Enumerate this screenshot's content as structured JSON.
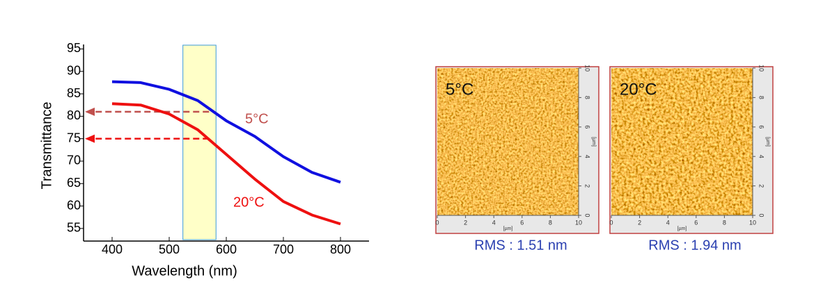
{
  "chart_data": {
    "type": "line",
    "xlabel": "Wavelength (nm)",
    "ylabel": "Transmittance",
    "x": [
      400,
      450,
      500,
      550,
      600,
      650,
      700,
      750,
      800
    ],
    "series": [
      {
        "name": "5°C",
        "color": "#1010e0",
        "values": [
          87.7,
          87.5,
          86,
          83.5,
          79,
          75.5,
          71,
          67.5,
          65.3
        ]
      },
      {
        "name": "20°C",
        "color": "#ee1010",
        "values": [
          82.8,
          82.5,
          80.5,
          77,
          71.5,
          66,
          61,
          58,
          56
        ]
      }
    ],
    "xlim": [
      350,
      850
    ],
    "xticks": [
      400,
      500,
      600,
      700,
      800
    ],
    "ylim": [
      52.5,
      96
    ],
    "yticks": [
      55,
      60,
      65,
      70,
      75,
      80,
      85,
      90,
      95
    ],
    "highlight": {
      "xlim": [
        524,
        582
      ],
      "color": "#ffffc8",
      "edge": "#3a9ad9"
    },
    "arrows": [
      {
        "y": 81,
        "color": "#c0504d"
      },
      {
        "y": 75,
        "color": "#ee1010"
      }
    ],
    "annotations": [
      {
        "text": "5°C",
        "color": "#c0504d"
      },
      {
        "text": "20°C",
        "color": "#ee1010"
      }
    ]
  },
  "afm_panels": [
    {
      "label": "5°C",
      "caption": "RMS : 1.51 nm",
      "ticks": [
        0,
        2,
        4,
        6,
        8,
        10
      ],
      "unit": "[µm]"
    },
    {
      "label": "20°C",
      "caption": "RMS : 1.94 nm",
      "ticks": [
        0,
        2,
        4,
        6,
        8,
        10
      ],
      "unit": "[µm]"
    }
  ]
}
